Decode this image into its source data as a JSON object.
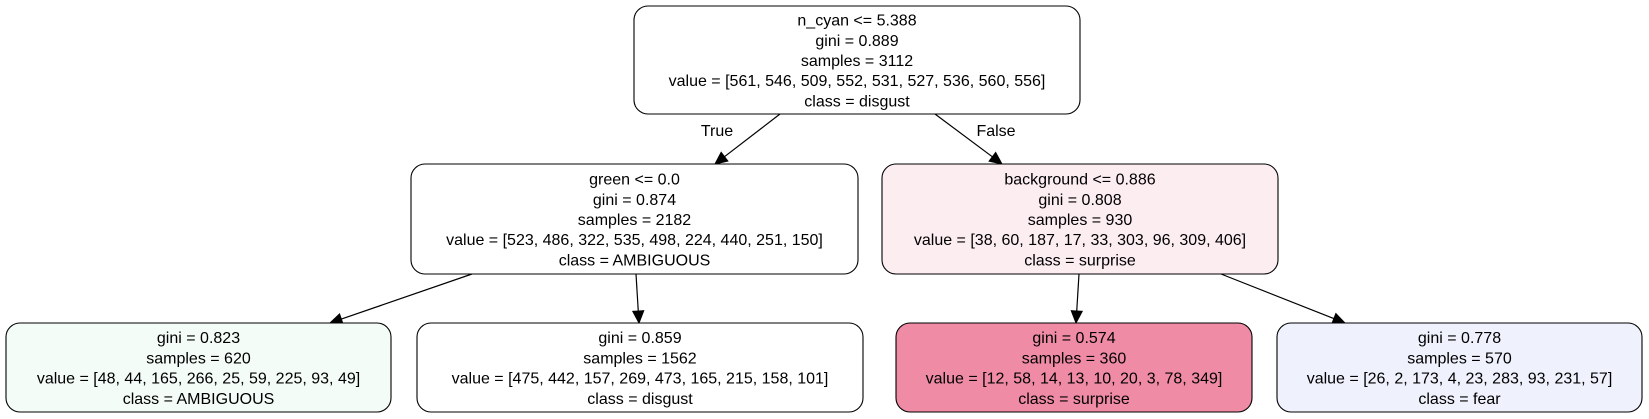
{
  "tree": {
    "nodes": [
      {
        "id": "root",
        "fill": "#ffffff",
        "lines": [
          "n_cyan <= 5.388",
          "gini = 0.889",
          "samples = 3112",
          "value = [561, 546, 509, 552, 531, 527, 536, 560, 556]",
          "class = disgust"
        ]
      },
      {
        "id": "left",
        "fill": "#ffffff",
        "lines": [
          "green <= 0.0",
          "gini = 0.874",
          "samples = 2182",
          "value = [523, 486, 322, 535, 498, 224, 440, 251, 150]",
          "class = AMBIGUOUS"
        ]
      },
      {
        "id": "right",
        "fill": "#fcedf1",
        "lines": [
          "background <= 0.886",
          "gini = 0.808",
          "samples = 930",
          "value = [38, 60, 187, 17, 33, 303, 96, 309, 406]",
          "class = surprise"
        ]
      },
      {
        "id": "left-left",
        "fill": "#f4fcf7",
        "lines": [
          "gini = 0.823",
          "samples = 620",
          "value = [48, 44, 165, 266, 25, 59, 225, 93, 49]",
          "class = AMBIGUOUS"
        ]
      },
      {
        "id": "left-right",
        "fill": "#ffffff",
        "lines": [
          "gini = 0.859",
          "samples = 1562",
          "value = [475, 442, 157, 269, 473, 165, 215, 158, 101]",
          "class = disgust"
        ]
      },
      {
        "id": "right-left",
        "fill": "#f08ba6",
        "lines": [
          "gini = 0.574",
          "samples = 360",
          "value = [12, 58, 14, 13, 10, 20, 3, 78, 349]",
          "class = surprise"
        ]
      },
      {
        "id": "right-right",
        "fill": "#eff1fc",
        "lines": [
          "gini = 0.778",
          "samples = 570",
          "value = [26, 2, 173, 4, 23, 283, 93, 231, 57]",
          "class = fear"
        ]
      }
    ],
    "edges": [
      {
        "from": "root",
        "to": "left",
        "label": "True"
      },
      {
        "from": "root",
        "to": "right",
        "label": "False"
      },
      {
        "from": "left",
        "to": "left-left",
        "label": ""
      },
      {
        "from": "left",
        "to": "left-right",
        "label": ""
      },
      {
        "from": "right",
        "to": "right-left",
        "label": ""
      },
      {
        "from": "right",
        "to": "right-right",
        "label": ""
      }
    ]
  }
}
